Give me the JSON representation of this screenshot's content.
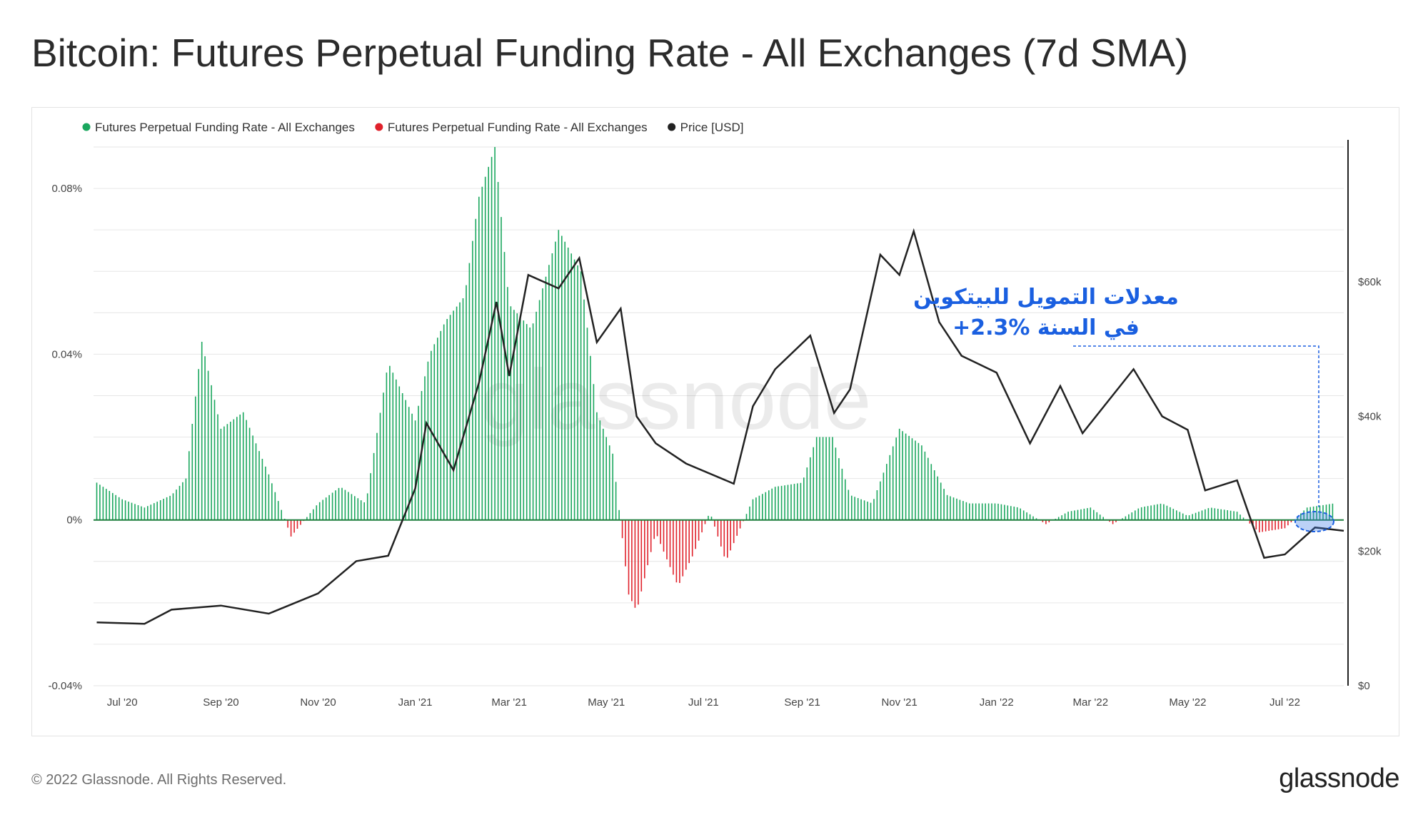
{
  "title": "Bitcoin: Futures Perpetual Funding Rate - All Exchanges (7d SMA)",
  "footer": {
    "copyright": "© 2022 Glassnode. All Rights Reserved.",
    "logo": "glassnode"
  },
  "watermark": "glassnode",
  "annotation": {
    "line1": "معدلات التمويل للبيتكوين",
    "line2": "+2.3% في السنة",
    "color": "#1a5fe0"
  },
  "colors": {
    "positive": "#1aa75e",
    "negative": "#e0212b",
    "price": "#222222"
  },
  "chart_data": {
    "type": "bar",
    "title": "Bitcoin: Futures Perpetual Funding Rate - All Exchanges (7d SMA)",
    "legend": [
      {
        "name": "Futures Perpetual Funding Rate - All Exchanges",
        "color": "#1aa75e"
      },
      {
        "name": "Futures Perpetual Funding Rate - All Exchanges",
        "color": "#e0212b"
      },
      {
        "name": "Price [USD]",
        "color": "#222222"
      }
    ],
    "legend_position": "top-left",
    "x_ticks": [
      "Jul '20",
      "Sep '20",
      "Nov '20",
      "Jan '21",
      "Mar '21",
      "May '21",
      "Jul '21",
      "Sep '21",
      "Nov '21",
      "Jan '22",
      "Mar '22",
      "May '22",
      "Jul '22"
    ],
    "x_range": [
      "2020-06-13",
      "2022-08-07"
    ],
    "y_left": {
      "ticks": [
        "0.08%",
        "0.04%",
        "0%",
        "-0.04%"
      ],
      "tick_values": [
        0.08,
        0.04,
        0,
        -0.04
      ],
      "range": [
        -0.04,
        0.09
      ]
    },
    "y_right": {
      "ticks": [
        "$60k",
        "$40k",
        "$20k",
        "$0"
      ],
      "tick_values": [
        60000,
        40000,
        20000,
        0
      ],
      "range": [
        0,
        80000
      ]
    },
    "grid": true,
    "funding_rate_series": {
      "name": "Futures Perpetual Funding Rate - All Exchanges",
      "unit": "%",
      "dates": [
        "2020-06-15",
        "2020-07-01",
        "2020-07-15",
        "2020-08-01",
        "2020-08-10",
        "2020-08-20",
        "2020-09-01",
        "2020-09-15",
        "2020-10-01",
        "2020-10-15",
        "2020-11-01",
        "2020-11-15",
        "2020-12-01",
        "2020-12-15",
        "2021-01-01",
        "2021-01-10",
        "2021-01-20",
        "2021-02-01",
        "2021-02-10",
        "2021-02-20",
        "2021-03-01",
        "2021-03-15",
        "2021-04-01",
        "2021-04-15",
        "2021-04-25",
        "2021-05-05",
        "2021-05-15",
        "2021-05-20",
        "2021-06-01",
        "2021-06-15",
        "2021-06-25",
        "2021-07-05",
        "2021-07-15",
        "2021-08-01",
        "2021-08-15",
        "2021-09-01",
        "2021-09-10",
        "2021-09-20",
        "2021-10-01",
        "2021-10-15",
        "2021-11-01",
        "2021-11-15",
        "2021-12-01",
        "2021-12-15",
        "2022-01-01",
        "2022-01-15",
        "2022-02-01",
        "2022-02-15",
        "2022-03-01",
        "2022-03-15",
        "2022-04-01",
        "2022-04-15",
        "2022-05-01",
        "2022-05-15",
        "2022-06-01",
        "2022-06-15",
        "2022-07-01",
        "2022-07-15",
        "2022-08-01"
      ],
      "values": [
        0.009,
        0.005,
        0.003,
        0.006,
        0.01,
        0.043,
        0.022,
        0.026,
        0.011,
        -0.004,
        0.004,
        0.008,
        0.004,
        0.038,
        0.024,
        0.04,
        0.048,
        0.054,
        0.078,
        0.09,
        0.052,
        0.046,
        0.07,
        0.06,
        0.026,
        0.016,
        -0.018,
        -0.022,
        -0.003,
        -0.016,
        -0.008,
        0.002,
        -0.01,
        0.005,
        0.008,
        0.009,
        0.02,
        0.02,
        0.006,
        0.004,
        0.022,
        0.018,
        0.006,
        0.004,
        0.004,
        0.003,
        -0.001,
        0.002,
        0.003,
        -0.001,
        0.003,
        0.004,
        0.001,
        0.003,
        0.002,
        -0.003,
        -0.002,
        0.003,
        0.004
      ]
    },
    "price_series": {
      "name": "Price [USD]",
      "dates": [
        "2020-06-15",
        "2020-07-15",
        "2020-08-01",
        "2020-09-01",
        "2020-10-01",
        "2020-11-01",
        "2020-11-25",
        "2020-12-15",
        "2021-01-01",
        "2021-01-08",
        "2021-01-25",
        "2021-02-10",
        "2021-02-21",
        "2021-03-01",
        "2021-03-13",
        "2021-04-01",
        "2021-04-14",
        "2021-04-25",
        "2021-05-10",
        "2021-05-20",
        "2021-06-01",
        "2021-06-20",
        "2021-07-20",
        "2021-08-01",
        "2021-08-15",
        "2021-09-06",
        "2021-09-21",
        "2021-10-01",
        "2021-10-20",
        "2021-11-01",
        "2021-11-10",
        "2021-11-26",
        "2021-12-10",
        "2022-01-01",
        "2022-01-22",
        "2022-02-10",
        "2022-02-24",
        "2022-03-28",
        "2022-04-15",
        "2022-05-01",
        "2022-05-12",
        "2022-06-01",
        "2022-06-18",
        "2022-07-01",
        "2022-07-20",
        "2022-08-07"
      ],
      "values": [
        9400,
        9200,
        11300,
        11900,
        10700,
        13700,
        18500,
        19300,
        29300,
        39000,
        32000,
        45000,
        57000,
        46000,
        61000,
        59000,
        63500,
        51000,
        56000,
        40000,
        36000,
        33000,
        30000,
        41500,
        47000,
        52000,
        40500,
        44000,
        64000,
        61000,
        67500,
        54000,
        49000,
        46500,
        36000,
        44500,
        37500,
        47000,
        40000,
        38000,
        29000,
        30500,
        19000,
        19500,
        23500,
        23000
      ]
    },
    "annotation_text": [
      "معدلات التمويل للبيتكوين",
      "+2.3% في السنة"
    ]
  }
}
